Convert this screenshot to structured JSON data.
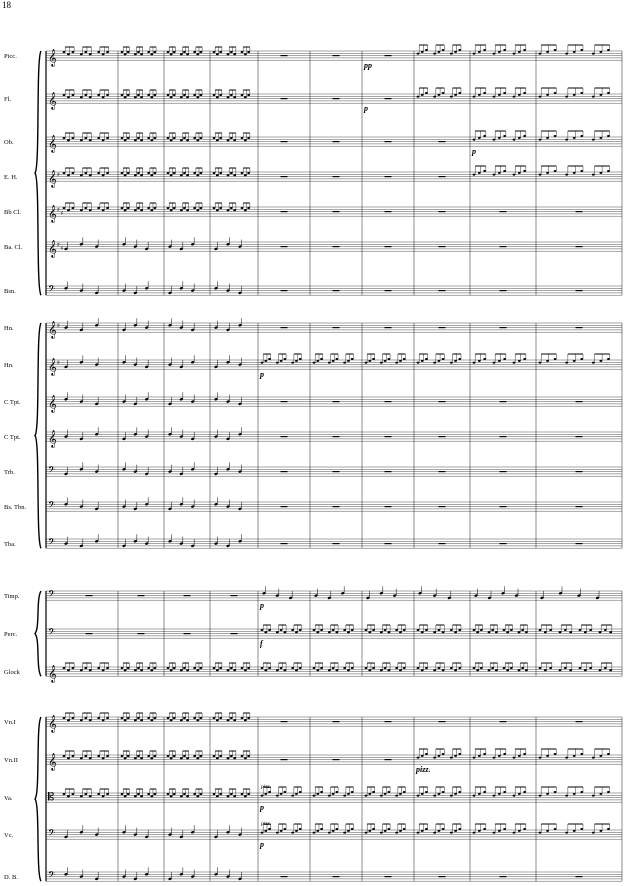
{
  "page": {
    "number": "18"
  },
  "systems": [
    {
      "id": "woodwinds",
      "instruments": [
        {
          "label": "Picc.",
          "clef": "treble",
          "key": "C"
        },
        {
          "label": "Fl.",
          "clef": "treble",
          "key": "C"
        },
        {
          "label": "Ob.",
          "clef": "treble",
          "key": "C"
        },
        {
          "label": "E. H.",
          "clef": "treble",
          "key": "G"
        },
        {
          "label": "Bb Cl.",
          "clef": "treble",
          "key": "D"
        },
        {
          "label": "Ba. Cl.",
          "clef": "treble",
          "key": "D"
        },
        {
          "label": "Bsn.",
          "clef": "bass",
          "key": "C"
        }
      ]
    },
    {
      "id": "brass",
      "instruments": [
        {
          "label": "Hn.",
          "clef": "treble",
          "key": "G"
        },
        {
          "label": "Hn.",
          "clef": "treble",
          "key": "G"
        },
        {
          "label": "C Tpt.",
          "clef": "treble",
          "key": "C"
        },
        {
          "label": "C Tpt.",
          "clef": "treble",
          "key": "C"
        },
        {
          "label": "Trb.",
          "clef": "bass",
          "key": "C"
        },
        {
          "label": "Bs. Tbn.",
          "clef": "bass",
          "key": "C"
        },
        {
          "label": "Tba.",
          "clef": "bass",
          "key": "C"
        }
      ]
    },
    {
      "id": "percussion",
      "instruments": [
        {
          "label": "Timp.",
          "clef": "bass",
          "key": "C"
        },
        {
          "label": "Perc.",
          "clef": "bass",
          "key": "C"
        },
        {
          "label": "Glock",
          "clef": "treble",
          "key": "C"
        }
      ]
    },
    {
      "id": "strings",
      "instruments": [
        {
          "label": "Vn.I",
          "clef": "treble",
          "key": "C"
        },
        {
          "label": "Vn.II",
          "clef": "treble",
          "key": "C"
        },
        {
          "label": "Va.",
          "clef": "alto",
          "key": "C"
        },
        {
          "label": "Vc.",
          "clef": "bass",
          "key": "C"
        },
        {
          "label": "D. B.",
          "clef": "bass",
          "key": "C"
        }
      ]
    }
  ],
  "markings": {
    "dyn_picc": "pp",
    "dyn_fl": "p",
    "dyn_ob": "p",
    "dyn_hn2": "p",
    "dyn_timp": "p",
    "dyn_perc": "f",
    "dyn_va": "p",
    "dyn_vc": "p",
    "pizz_vn2": "pizz.",
    "pizz_va": "pizz.",
    "pizz_vc": "pizz."
  }
}
